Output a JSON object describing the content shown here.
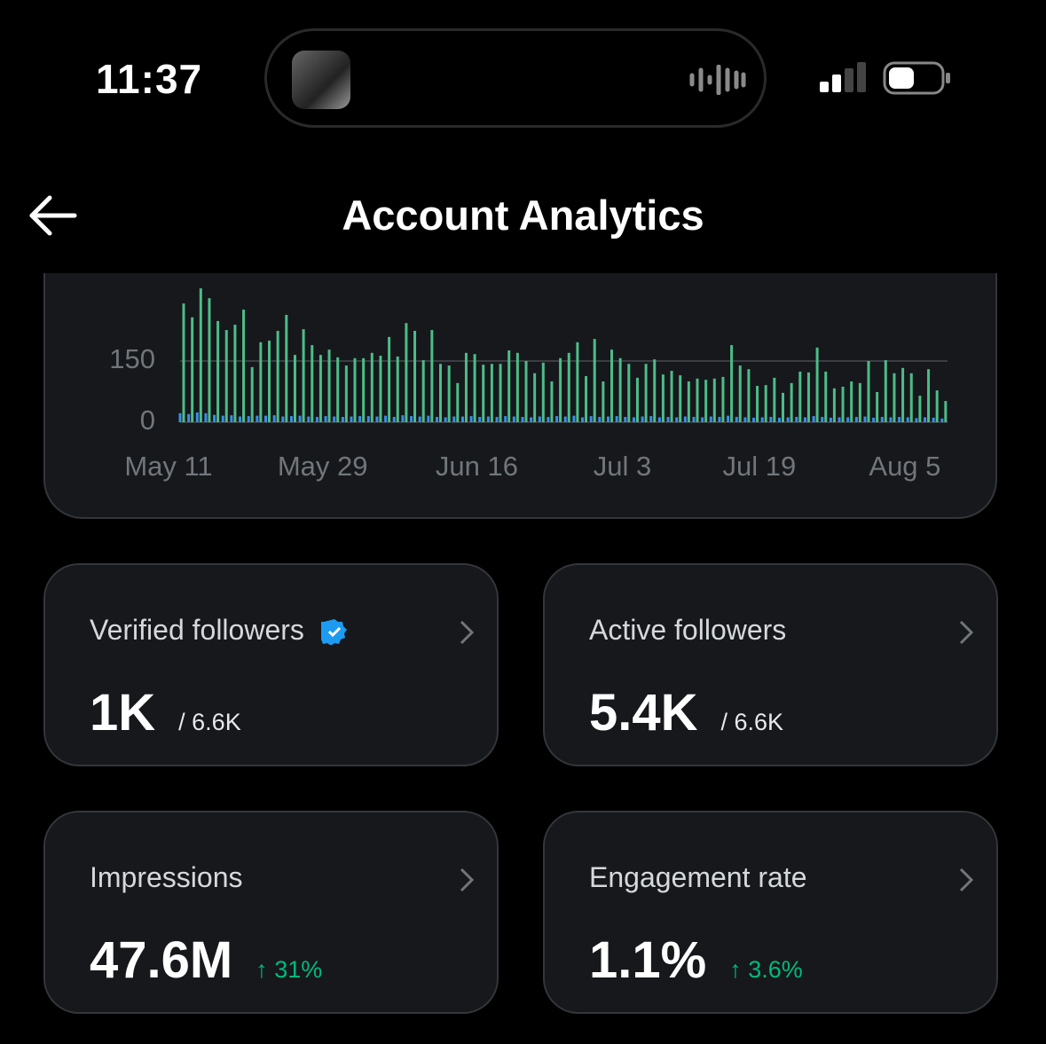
{
  "status_bar": {
    "time": "11:37"
  },
  "header": {
    "title": "Account Analytics"
  },
  "chart_data": {
    "type": "bar",
    "categories": [
      "May 11",
      null,
      null,
      null,
      null,
      null,
      null,
      null,
      null,
      null,
      null,
      null,
      null,
      null,
      null,
      null,
      null,
      null,
      "May 29",
      null,
      null,
      null,
      null,
      null,
      null,
      null,
      null,
      null,
      null,
      null,
      null,
      null,
      null,
      null,
      null,
      null,
      "Jun 16",
      null,
      null,
      null,
      null,
      null,
      null,
      null,
      null,
      null,
      null,
      null,
      null,
      null,
      null,
      null,
      null,
      "Jul 3",
      null,
      null,
      null,
      null,
      null,
      null,
      null,
      null,
      null,
      null,
      null,
      null,
      null,
      null,
      null,
      "Jul 19",
      null,
      null,
      null,
      null,
      null,
      null,
      null,
      null,
      null,
      null,
      null,
      null,
      null,
      null,
      null,
      null,
      "Aug 5",
      null,
      null,
      null
    ],
    "series": [
      {
        "color": "#4cbd87",
        "values": [
          291,
          257,
          328,
          304,
          248,
          226,
          239,
          276,
          135,
          196,
          200,
          224,
          263,
          165,
          228,
          189,
          165,
          178,
          159,
          139,
          157,
          157,
          170,
          163,
          209,
          161,
          243,
          224,
          152,
          226,
          143,
          139,
          96,
          170,
          167,
          141,
          143,
          143,
          176,
          170,
          150,
          120,
          146,
          100,
          157,
          170,
          196,
          113,
          204,
          100,
          178,
          157,
          143,
          109,
          143,
          154,
          117,
          126,
          115,
          100,
          107,
          104,
          107,
          111,
          189,
          139,
          130,
          89,
          91,
          109,
          72,
          96,
          124,
          122,
          183,
          124,
          83,
          87,
          100,
          96,
          150,
          74,
          152,
          120,
          133,
          120,
          65,
          130,
          78,
          52
        ]
      },
      {
        "color": "#3b8ee6",
        "values": [
          22,
          20,
          24,
          22,
          18,
          16,
          17,
          14,
          15,
          16,
          16,
          17,
          14,
          15,
          16,
          14,
          13,
          15,
          14,
          13,
          14,
          15,
          15,
          14,
          16,
          13,
          17,
          15,
          14,
          16,
          13,
          12,
          14,
          14,
          15,
          13,
          14,
          13,
          15,
          14,
          13,
          12,
          14,
          13,
          15,
          14,
          16,
          12,
          15,
          13,
          14,
          15,
          13,
          12,
          14,
          15,
          12,
          13,
          12,
          14,
          13,
          12,
          14,
          13,
          16,
          13,
          12,
          11,
          12,
          13,
          11,
          12,
          13,
          12,
          15,
          13,
          11,
          12,
          12,
          13,
          14,
          11,
          13,
          12,
          13,
          12,
          10,
          12,
          11,
          9
        ]
      }
    ],
    "ylim": [
      0,
      360
    ],
    "yticks": [
      0,
      150
    ],
    "grid": true
  },
  "cards": [
    {
      "label": "Verified followers",
      "value": "1K",
      "total": "/ 6.6K"
    },
    {
      "label": "Active followers",
      "value": "5.4K",
      "total": "/ 6.6K"
    },
    {
      "label": "Impressions",
      "value": "47.6M",
      "change": "↑ 31%"
    },
    {
      "label": "Engagement rate",
      "value": "1.1%",
      "change": "↑ 3.6%"
    }
  ]
}
